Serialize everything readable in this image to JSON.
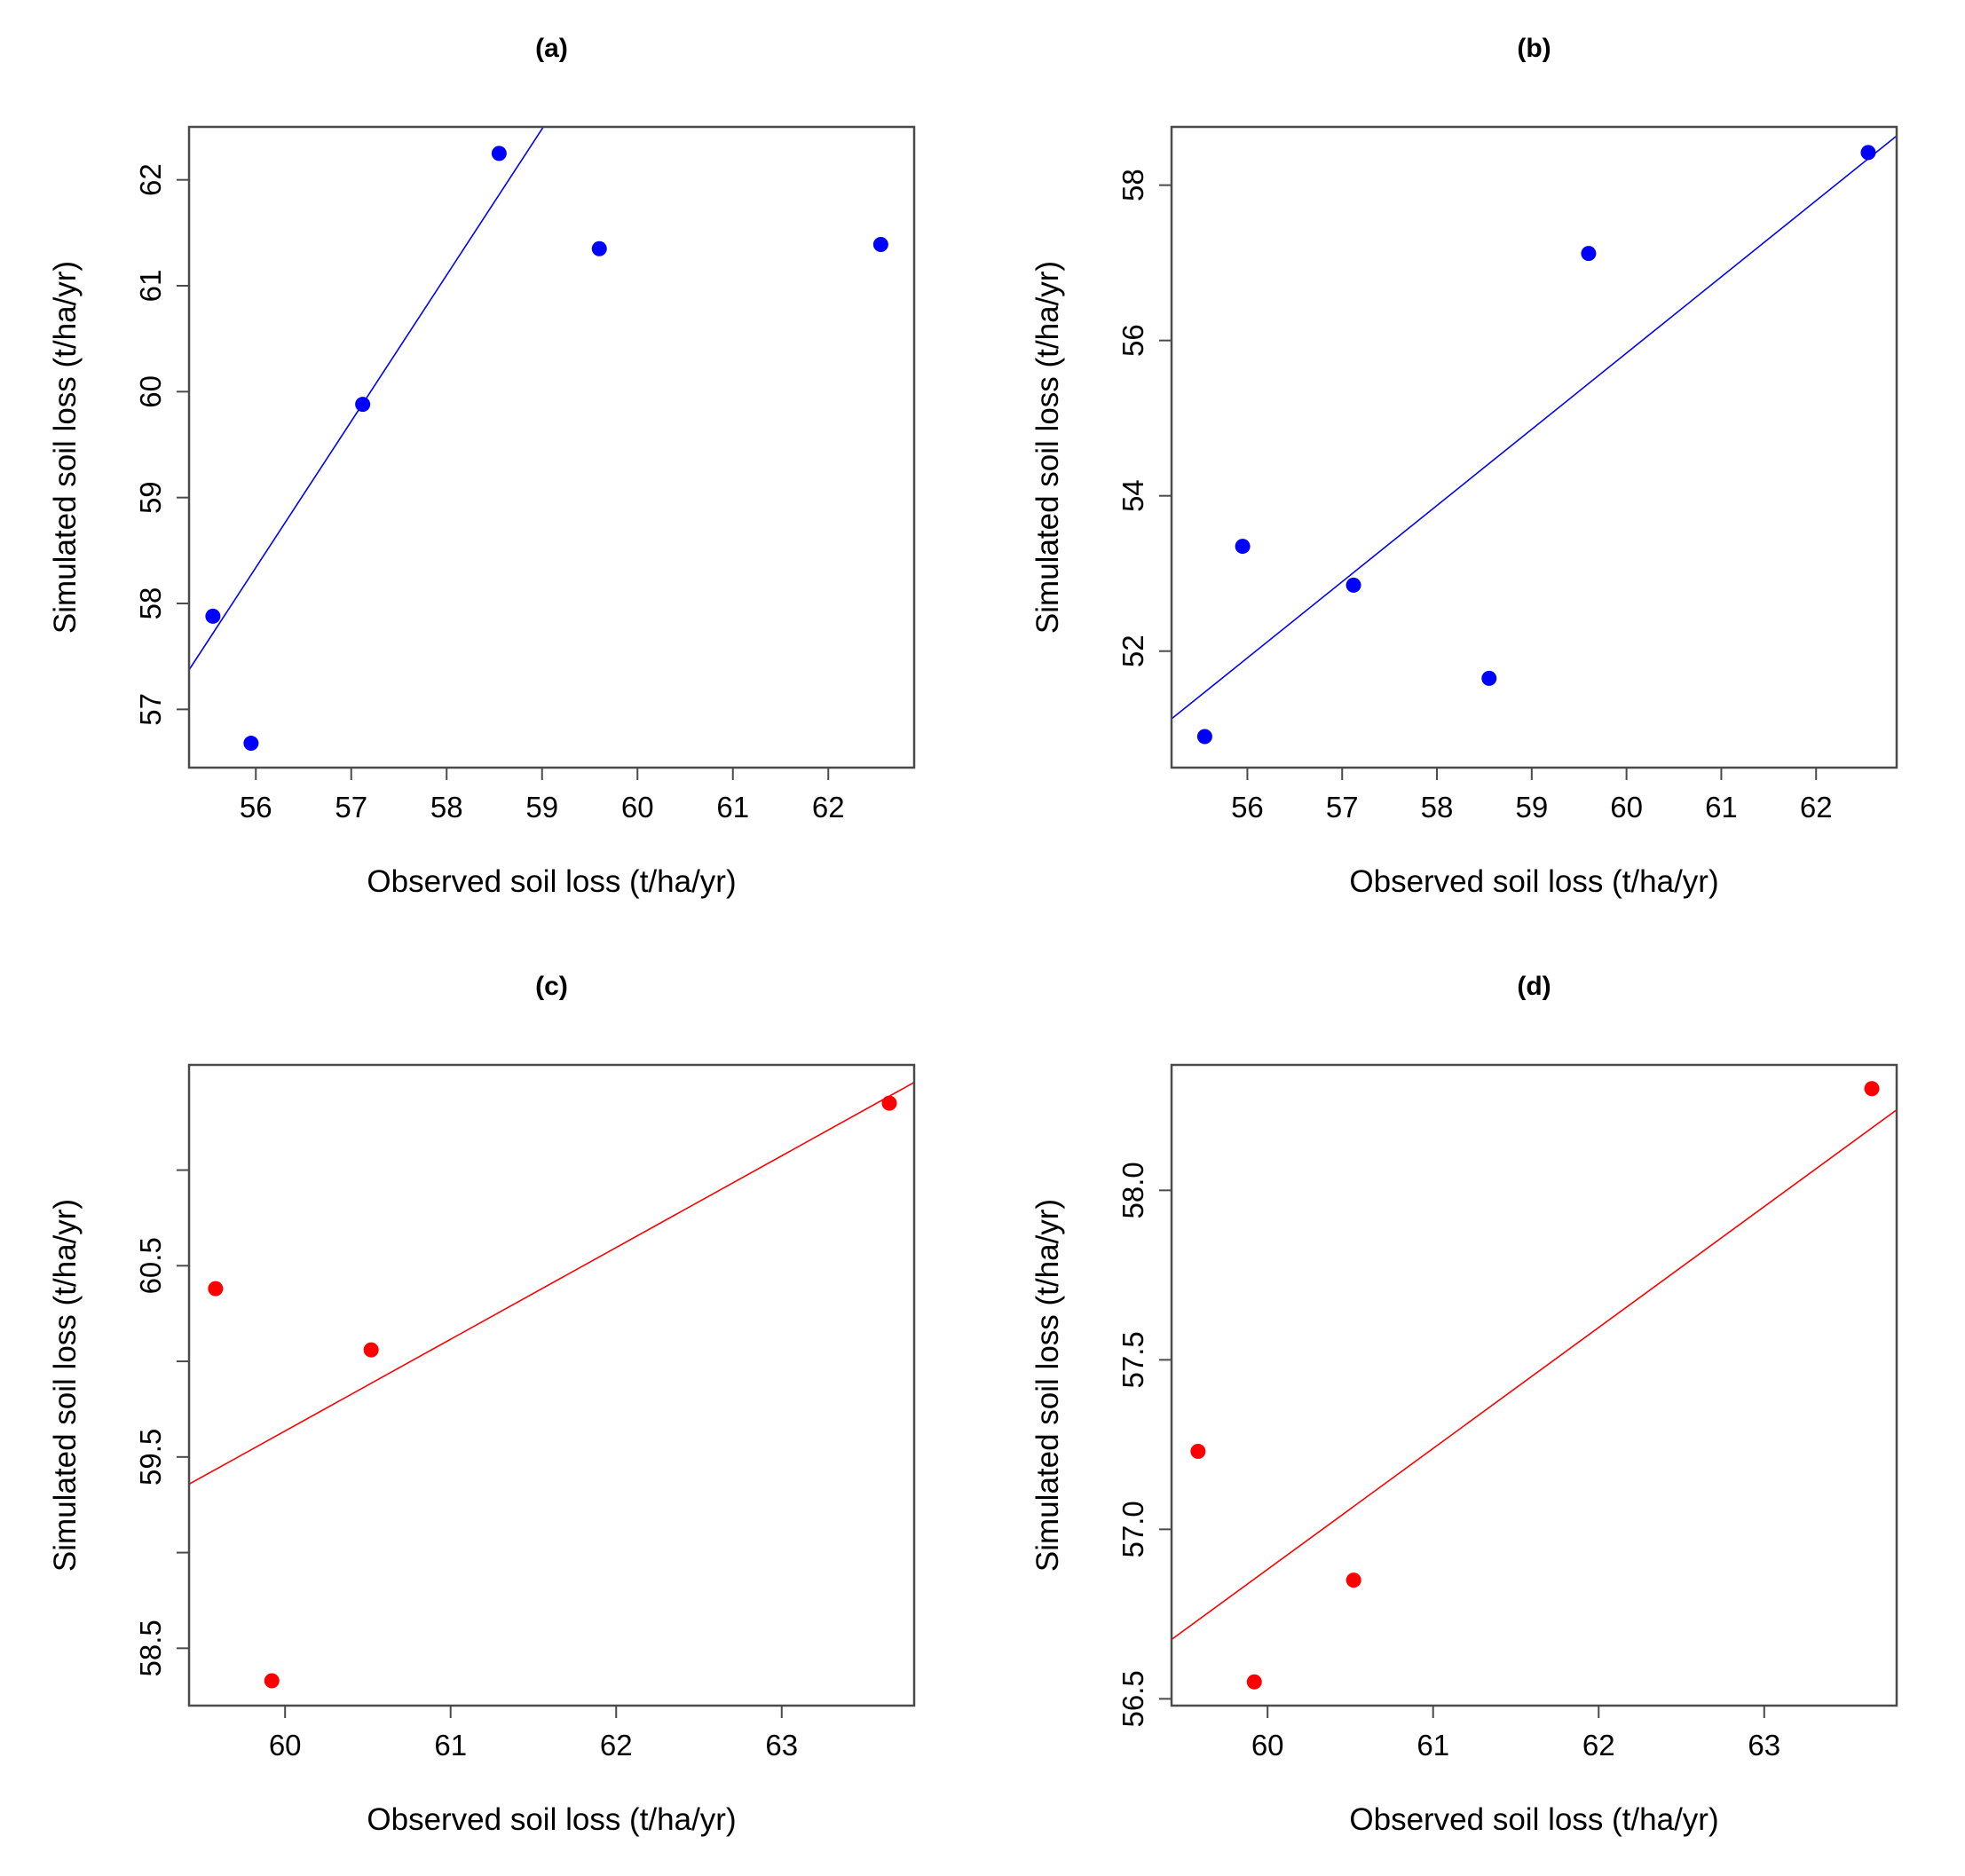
{
  "chart_data": [
    {
      "type": "scatter",
      "title": "(a)",
      "xlabel": "Observed soil loss (t/ha/yr)",
      "ylabel": "Simulated soil loss (t/ha/yr)",
      "xlim": [
        55.3,
        62.9
      ],
      "ylim": [
        56.45,
        62.5
      ],
      "xticks": [
        56,
        57,
        58,
        59,
        60,
        61,
        62
      ],
      "yticks": [
        57,
        58,
        59,
        60,
        61,
        62
      ],
      "x": [
        55.55,
        55.95,
        57.12,
        58.55,
        59.6,
        62.55
      ],
      "y": [
        57.88,
        56.68,
        59.88,
        62.25,
        61.35,
        61.39
      ],
      "fit_line": {
        "intercept": -18.98,
        "slope": 1.3807
      },
      "point_color": "#0000ff",
      "line_color": "#0000ff"
    },
    {
      "type": "scatter",
      "title": "(b)",
      "xlabel": "Observed soil loss (t/ha/yr)",
      "ylabel": "Simulated soil loss (t/ha/yr)",
      "xlim": [
        55.2,
        62.85
      ],
      "ylim": [
        50.5,
        58.75
      ],
      "xticks": [
        56,
        57,
        58,
        59,
        60,
        61,
        62
      ],
      "yticks": [
        52,
        54,
        56,
        58
      ],
      "x": [
        55.55,
        55.95,
        57.12,
        58.55,
        59.6,
        62.55
      ],
      "y": [
        50.9,
        53.35,
        52.85,
        51.65,
        57.12,
        58.42
      ],
      "fit_line": {
        "intercept": -3.04,
        "slope": 0.9813
      },
      "point_color": "#0000ff",
      "line_color": "#0000ff"
    },
    {
      "type": "scatter",
      "title": "(c)",
      "xlabel": "Observed soil loss (t/ha/yr)",
      "ylabel": "Simulated soil loss (t/ha/yr)",
      "xlim": [
        59.42,
        63.8
      ],
      "ylim": [
        58.2,
        61.55
      ],
      "xticks": [
        60,
        61,
        62,
        63
      ],
      "ytick_values": [
        58.5,
        59,
        59.5,
        60,
        60.5,
        61
      ],
      "ytick_labels": [
        "58.5",
        "",
        "59.5",
        "",
        "60.5",
        ""
      ],
      "x": [
        59.58,
        59.92,
        60.52,
        63.65
      ],
      "y": [
        60.38,
        58.33,
        60.06,
        61.35
      ],
      "fit_line": {
        "intercept": 30.86,
        "slope": 0.4796
      },
      "point_color": "#ff0000",
      "line_color": "#ff0000"
    },
    {
      "type": "scatter",
      "title": "(d)",
      "xlabel": "Observed soil loss (t/ha/yr)",
      "ylabel": "Simulated soil loss (t/ha/yr)",
      "xlim": [
        59.42,
        63.8
      ],
      "ylim": [
        56.48,
        58.37
      ],
      "xticks": [
        60,
        61,
        62,
        63
      ],
      "ytick_values": [
        56.5,
        57,
        57.5,
        58
      ],
      "ytick_labels": [
        "56.5",
        "57.0",
        "57.5",
        "58.0"
      ],
      "x": [
        59.58,
        59.92,
        60.52,
        63.65
      ],
      "y": [
        57.23,
        56.55,
        56.85,
        58.3
      ],
      "fit_line": {
        "intercept": 35.48,
        "slope": 0.3567
      },
      "point_color": "#ff0000",
      "line_color": "#ff0000"
    }
  ]
}
